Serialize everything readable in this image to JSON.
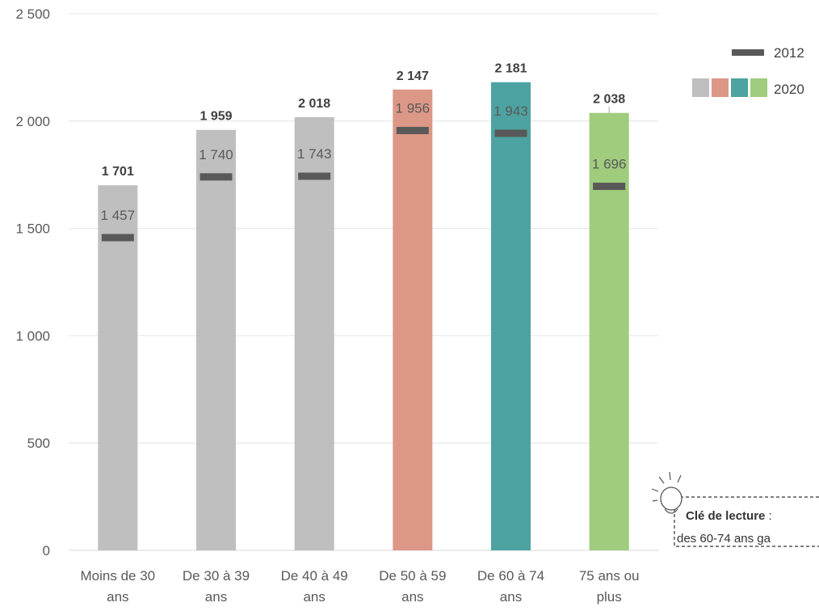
{
  "chart_data": {
    "type": "bar",
    "categories": [
      [
        "Moins de 30",
        "ans"
      ],
      [
        "De 30 à 39",
        "ans"
      ],
      [
        "De 40 à 49",
        "ans"
      ],
      [
        "De 50 à 59",
        "ans"
      ],
      [
        "De 60 à 74",
        "ans"
      ],
      [
        "75 ans ou",
        "plus"
      ]
    ],
    "series": [
      {
        "name": "2020",
        "kind": "bar",
        "values": [
          1701,
          1959,
          2018,
          2147,
          2181,
          2038
        ],
        "labels": [
          "1 701",
          "1 959",
          "2 018",
          "2 147",
          "2 181",
          "2 038"
        ]
      },
      {
        "name": "2012",
        "kind": "marker",
        "values": [
          1457,
          1740,
          1743,
          1956,
          1943,
          1696
        ],
        "labels": [
          "1 457",
          "1 740",
          "1 743",
          "1 956",
          "1 943",
          "1 696"
        ]
      }
    ],
    "bar_colors": [
      "#bfbfbf",
      "#bfbfbf",
      "#bfbfbf",
      "#dd9786",
      "#4da3a1",
      "#9fcc7d"
    ],
    "marker_color": "#595959",
    "ylim": [
      0,
      2500
    ],
    "yticks": [
      0,
      500,
      1000,
      1500,
      2000,
      2500
    ],
    "ytick_labels": [
      "0",
      "500",
      "1 000",
      "1 500",
      "2 000",
      "2 500"
    ],
    "grid": true,
    "legend_position": "top-right",
    "legend": [
      {
        "label": "2012",
        "kind": "marker",
        "color": "#595959"
      },
      {
        "label": "2020",
        "kind": "swatches",
        "colors": [
          "#bfbfbf",
          "#dd9786",
          "#4da3a1",
          "#9fcc7d"
        ]
      }
    ]
  },
  "reading_key": {
    "title": "Clé de lecture",
    "colon": " :",
    "text": "des 60-74 ans ga"
  }
}
